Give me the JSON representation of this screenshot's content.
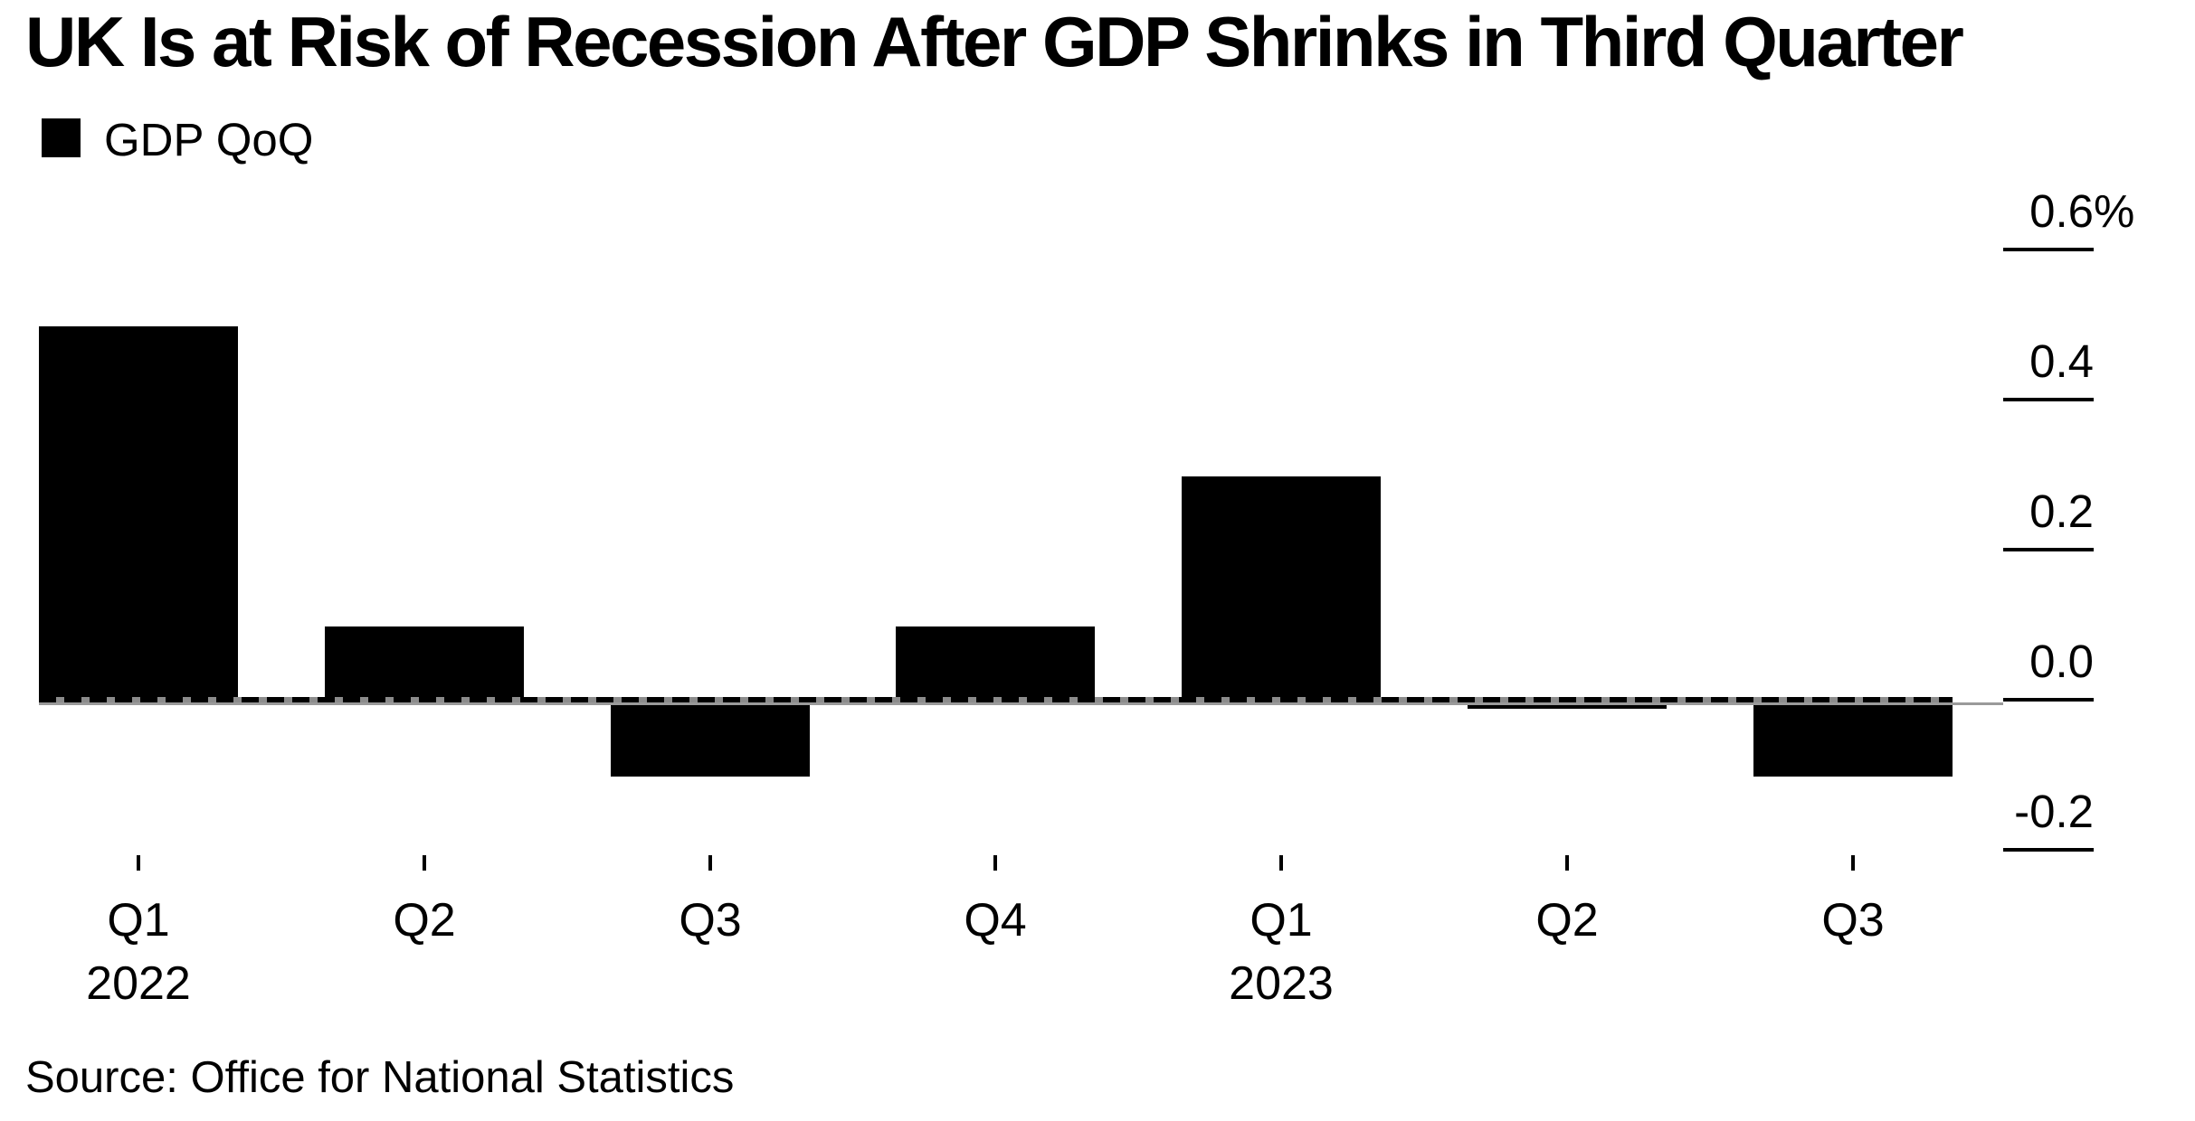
{
  "header": {
    "title": "UK Is at Risk of Recession After GDP Shrinks in Third Quarter"
  },
  "legend": {
    "label": "GDP QoQ",
    "swatch_color": "#000000"
  },
  "chart_data": {
    "type": "bar",
    "title": "UK Is at Risk of Recession After GDP Shrinks in Third Quarter",
    "series": [
      {
        "name": "GDP QoQ",
        "values": [
          0.5,
          0.1,
          -0.1,
          0.1,
          0.3,
          0.0,
          -0.1
        ]
      }
    ],
    "categories": [
      "Q1 2022",
      "Q2 2022",
      "Q3 2022",
      "Q4 2022",
      "Q1 2023",
      "Q2 2023",
      "Q3 2023"
    ],
    "unit": "%",
    "ylim": [
      -0.3,
      0.65
    ],
    "y_ticks": [
      0.6,
      0.4,
      0.2,
      0.0,
      -0.2
    ],
    "bar_color": "#000000",
    "background_color": "#ffffff",
    "zero_line_style": "dashed-black-gray",
    "grid": "off",
    "legend_position": "top-left",
    "y_axis_side": "right"
  },
  "y_axis": {
    "labels": [
      {
        "text": "0.6",
        "suffix": "%"
      },
      {
        "text": "0.4",
        "suffix": ""
      },
      {
        "text": "0.2",
        "suffix": ""
      },
      {
        "text": "0.0",
        "suffix": ""
      },
      {
        "text": "-0.2",
        "suffix": ""
      }
    ]
  },
  "x_axis": {
    "ticks": [
      {
        "label": "Q1",
        "year": "2022"
      },
      {
        "label": "Q2",
        "year": ""
      },
      {
        "label": "Q3",
        "year": ""
      },
      {
        "label": "Q4",
        "year": ""
      },
      {
        "label": "Q1",
        "year": "2023"
      },
      {
        "label": "Q2",
        "year": ""
      },
      {
        "label": "Q3",
        "year": ""
      }
    ]
  },
  "footer": {
    "source": "Source: Office for National Statistics"
  }
}
